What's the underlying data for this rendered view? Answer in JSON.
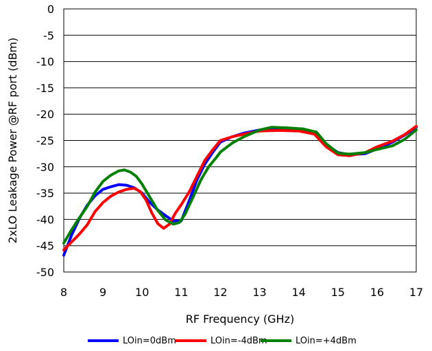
{
  "chart_data": {
    "type": "line",
    "title": "",
    "xlabel": "RF Frequency (GHz)",
    "ylabel": "2xLO Leakage Power @RF port (dBm)",
    "xlim": [
      8,
      17
    ],
    "ylim": [
      -50,
      0
    ],
    "xticks": [
      8,
      9,
      10,
      11,
      12,
      13,
      14,
      15,
      16,
      17
    ],
    "yticks": [
      0,
      -5,
      -10,
      -15,
      -20,
      -25,
      -30,
      -35,
      -40,
      -45,
      -50
    ],
    "grid": "horizontal",
    "legend_position": "bottom",
    "series": [
      {
        "name": "LOin=0dBm",
        "color": "#0000FF",
        "points": [
          [
            8,
            -46.8
          ],
          [
            8.2,
            -43
          ],
          [
            8.4,
            -39.8
          ],
          [
            8.6,
            -37.3
          ],
          [
            8.8,
            -35.5
          ],
          [
            9.0,
            -34.3
          ],
          [
            9.2,
            -33.8
          ],
          [
            9.4,
            -33.4
          ],
          [
            9.6,
            -33.5
          ],
          [
            9.8,
            -34.0
          ],
          [
            10.0,
            -35.0
          ],
          [
            10.2,
            -36.8
          ],
          [
            10.4,
            -38.2
          ],
          [
            10.6,
            -39.3
          ],
          [
            10.8,
            -40.3
          ],
          [
            11.0,
            -40.3
          ],
          [
            11.2,
            -36.5
          ],
          [
            11.4,
            -32.5
          ],
          [
            11.6,
            -29.5
          ],
          [
            11.8,
            -27.3
          ],
          [
            12.0,
            -25.3
          ],
          [
            12.3,
            -24.3
          ],
          [
            12.6,
            -23.6
          ],
          [
            13.0,
            -23.0
          ],
          [
            13.5,
            -22.8
          ],
          [
            14.0,
            -22.9
          ],
          [
            14.4,
            -23.5
          ],
          [
            14.7,
            -25.8
          ],
          [
            15.0,
            -27.3
          ],
          [
            15.3,
            -27.7
          ],
          [
            15.7,
            -27.5
          ],
          [
            16.0,
            -26.6
          ],
          [
            16.4,
            -25.3
          ],
          [
            16.7,
            -24.0
          ],
          [
            17.0,
            -22.5
          ]
        ]
      },
      {
        "name": "LOin=-4dBm",
        "color": "#FF0000",
        "points": [
          [
            8,
            -45.8
          ],
          [
            8.2,
            -44.3
          ],
          [
            8.4,
            -42.8
          ],
          [
            8.6,
            -41.0
          ],
          [
            8.8,
            -38.5
          ],
          [
            9.0,
            -36.8
          ],
          [
            9.2,
            -35.6
          ],
          [
            9.4,
            -34.8
          ],
          [
            9.6,
            -34.3
          ],
          [
            9.8,
            -34.1
          ],
          [
            9.95,
            -34.7
          ],
          [
            10.1,
            -36.3
          ],
          [
            10.25,
            -38.8
          ],
          [
            10.4,
            -40.8
          ],
          [
            10.55,
            -41.7
          ],
          [
            10.7,
            -40.9
          ],
          [
            10.85,
            -38.8
          ],
          [
            11.0,
            -37.2
          ],
          [
            11.2,
            -34.8
          ],
          [
            11.4,
            -31.8
          ],
          [
            11.6,
            -28.8
          ],
          [
            11.8,
            -26.8
          ],
          [
            12.0,
            -25.0
          ],
          [
            12.3,
            -24.3
          ],
          [
            12.6,
            -23.8
          ],
          [
            13.0,
            -23.2
          ],
          [
            13.5,
            -23.1
          ],
          [
            14.0,
            -23.2
          ],
          [
            14.4,
            -23.8
          ],
          [
            14.7,
            -26.2
          ],
          [
            15.0,
            -27.7
          ],
          [
            15.3,
            -27.9
          ],
          [
            15.7,
            -27.3
          ],
          [
            16.0,
            -26.2
          ],
          [
            16.4,
            -25.1
          ],
          [
            16.7,
            -23.9
          ],
          [
            17.0,
            -22.3
          ]
        ]
      },
      {
        "name": "LOin=+4dBm",
        "color": "#008000",
        "points": [
          [
            8,
            -44.5
          ],
          [
            8.2,
            -42.0
          ],
          [
            8.4,
            -39.7
          ],
          [
            8.6,
            -37.5
          ],
          [
            8.8,
            -34.8
          ],
          [
            9.0,
            -32.8
          ],
          [
            9.2,
            -31.6
          ],
          [
            9.4,
            -30.8
          ],
          [
            9.55,
            -30.6
          ],
          [
            9.7,
            -31.0
          ],
          [
            9.85,
            -31.8
          ],
          [
            10.0,
            -33.3
          ],
          [
            10.2,
            -35.8
          ],
          [
            10.4,
            -38.3
          ],
          [
            10.6,
            -40.1
          ],
          [
            10.8,
            -40.9
          ],
          [
            10.95,
            -40.6
          ],
          [
            11.1,
            -39.0
          ],
          [
            11.3,
            -35.8
          ],
          [
            11.5,
            -32.5
          ],
          [
            11.7,
            -30.0
          ],
          [
            11.9,
            -28.2
          ],
          [
            12.0,
            -27.2
          ],
          [
            12.3,
            -25.5
          ],
          [
            12.6,
            -24.3
          ],
          [
            13.0,
            -23.0
          ],
          [
            13.3,
            -22.5
          ],
          [
            13.7,
            -22.6
          ],
          [
            14.1,
            -22.8
          ],
          [
            14.45,
            -23.4
          ],
          [
            14.7,
            -25.6
          ],
          [
            15.0,
            -27.4
          ],
          [
            15.3,
            -27.6
          ],
          [
            15.7,
            -27.3
          ],
          [
            16.0,
            -26.7
          ],
          [
            16.4,
            -26.0
          ],
          [
            16.7,
            -24.8
          ],
          [
            17.0,
            -23.0
          ]
        ]
      }
    ]
  }
}
